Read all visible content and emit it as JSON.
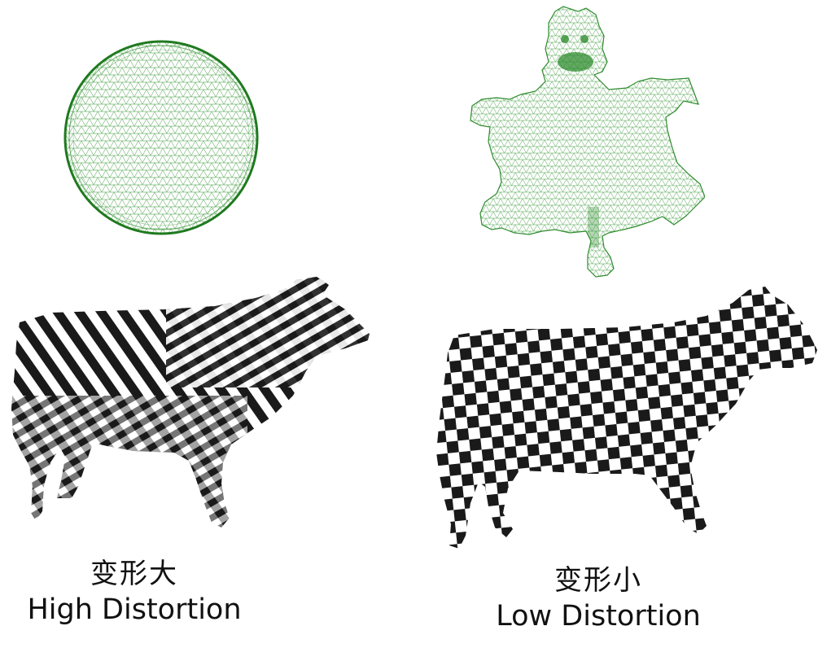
{
  "figure": {
    "left": {
      "caption_cn": "变形大",
      "caption_en": "High Distortion",
      "mesh_icon": "circular-uv-mesh-icon",
      "model_icon": "checkerboard-cow-icon"
    },
    "right": {
      "caption_cn": "变形小",
      "caption_en": "Low Distortion",
      "mesh_icon": "flattened-uv-mesh-icon",
      "model_icon": "checkerboard-cow-icon"
    }
  },
  "colors": {
    "mesh": "#2e8b2e",
    "checker_dark": "#1a1a1a",
    "checker_light": "#ffffff",
    "text": "#111111"
  }
}
